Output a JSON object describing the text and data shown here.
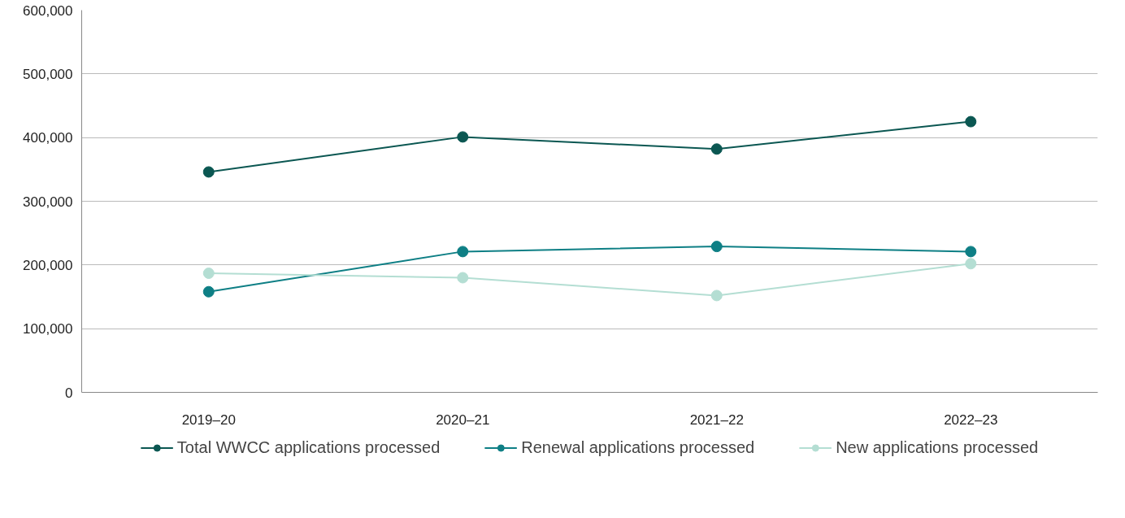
{
  "chart_data": {
    "type": "line",
    "categories": [
      "2019–20",
      "2020–21",
      "2021–22",
      "2022–23"
    ],
    "series": [
      {
        "name": "Total WWCC applications processed",
        "color": "#0b5752",
        "values": [
          346000,
          401000,
          382000,
          425000
        ]
      },
      {
        "name": "Renewal applications processed",
        "color": "#0e7f85",
        "values": [
          158000,
          221000,
          229000,
          221000
        ]
      },
      {
        "name": "New applications processed",
        "color": "#b4ded3",
        "values": [
          187000,
          180000,
          152000,
          202000
        ]
      }
    ],
    "ylim": [
      0,
      600000
    ],
    "yticks": [
      {
        "value": 0,
        "label": "0"
      },
      {
        "value": 100000,
        "label": "100,000"
      },
      {
        "value": 200000,
        "label": "200,000"
      },
      {
        "value": 300000,
        "label": "300,000"
      },
      {
        "value": 400000,
        "label": "400,000"
      },
      {
        "value": 500000,
        "label": "500,000"
      },
      {
        "value": 600000,
        "label": "600,000"
      }
    ],
    "grid": "y",
    "legend": "bottom",
    "marker": "circle",
    "line_style": "solid"
  }
}
